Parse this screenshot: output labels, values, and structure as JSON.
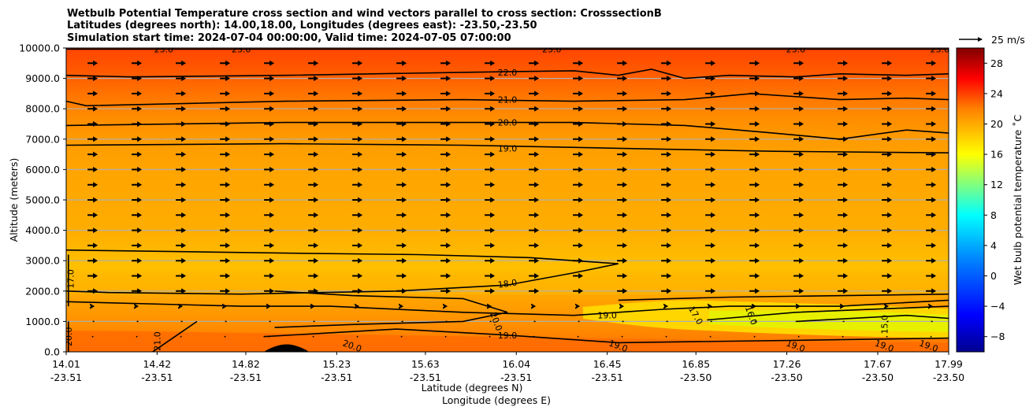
{
  "chart_data": {
    "type": "contour",
    "title_lines": [
      "Wetbulb Potential Temperature cross section and wind vectors parallel to cross section: CrosssectionB",
      "Latitudes (degrees north): 14.00,18.00, Longitudes (degrees east): -23.50,-23.50",
      "Simulation start time: 2024-07-04 00:00:00, Valid time: 2024-07-05 07:00:00"
    ],
    "ylabel": "Altitude (meters)",
    "xlabel": "Latitude (degrees N)",
    "xlabel2": "Longitude (degrees E)",
    "ylim": [
      0,
      10000
    ],
    "xlim": [
      14.01,
      17.99
    ],
    "y_ticks": [
      {
        "value": 0,
        "label": "0.0"
      },
      {
        "value": 1000,
        "label": "1000.0"
      },
      {
        "value": 2000,
        "label": "2000.0"
      },
      {
        "value": 3000,
        "label": "3000.0"
      },
      {
        "value": 4000,
        "label": "4000.0"
      },
      {
        "value": 5000,
        "label": "5000.0"
      },
      {
        "value": 6000,
        "label": "6000.0"
      },
      {
        "value": 7000,
        "label": "7000.0"
      },
      {
        "value": 8000,
        "label": "8000.0"
      },
      {
        "value": 9000,
        "label": "9000.0"
      },
      {
        "value": 10000,
        "label": "10000.0"
      }
    ],
    "x_ticks": [
      {
        "value": 14.01,
        "lat": "14.01",
        "lon": "-23.51"
      },
      {
        "value": 14.42,
        "lat": "14.42",
        "lon": "-23.51"
      },
      {
        "value": 14.82,
        "lat": "14.82",
        "lon": "-23.51"
      },
      {
        "value": 15.23,
        "lat": "15.23",
        "lon": "-23.51"
      },
      {
        "value": 15.63,
        "lat": "15.63",
        "lon": "-23.51"
      },
      {
        "value": 16.04,
        "lat": "16.04",
        "lon": "-23.51"
      },
      {
        "value": 16.45,
        "lat": "16.45",
        "lon": "-23.51"
      },
      {
        "value": 16.85,
        "lat": "16.85",
        "lon": "-23.50"
      },
      {
        "value": 17.26,
        "lat": "17.26",
        "lon": "-23.50"
      },
      {
        "value": 17.67,
        "lat": "17.67",
        "lon": "-23.50"
      },
      {
        "value": 17.99,
        "lat": "17.99",
        "lon": "-23.50"
      }
    ],
    "colorbar": {
      "label": "Wet bulb potential temperature ˚C",
      "range": [
        -10,
        30
      ],
      "ticks": [
        -8,
        -4,
        0,
        4,
        8,
        12,
        16,
        20,
        24,
        28
      ]
    },
    "quiver_key": {
      "label": "25 m/s",
      "speed": 25
    },
    "contours": [
      {
        "level": "23.0",
        "points": [
          [
            14.01,
            9960
          ],
          [
            17.99,
            9960
          ]
        ],
        "labels": [
          {
            "x": 14.45,
            "y": 9960,
            "rot": 0
          },
          {
            "x": 14.8,
            "y": 9960,
            "rot": 0
          },
          {
            "x": 16.2,
            "y": 9960,
            "rot": 0
          },
          {
            "x": 17.3,
            "y": 9960,
            "rot": 0
          },
          {
            "x": 17.95,
            "y": 9960,
            "rot": 0
          }
        ]
      },
      {
        "level": "22.0",
        "points": [
          [
            14.01,
            9100
          ],
          [
            14.3,
            9050
          ],
          [
            15.0,
            9100
          ],
          [
            15.8,
            9200
          ],
          [
            16.3,
            9250
          ],
          [
            16.5,
            9100
          ],
          [
            16.65,
            9300
          ],
          [
            16.8,
            9000
          ],
          [
            17.0,
            9100
          ],
          [
            17.3,
            9050
          ],
          [
            17.5,
            9150
          ],
          [
            17.8,
            9100
          ],
          [
            17.99,
            9150
          ]
        ],
        "labels": [
          {
            "x": 16.0,
            "y": 9200,
            "rot": 0
          }
        ]
      },
      {
        "level": "21.0",
        "points": [
          [
            14.01,
            8250
          ],
          [
            14.1,
            8100
          ],
          [
            15.0,
            8250
          ],
          [
            15.8,
            8300
          ],
          [
            16.3,
            8250
          ],
          [
            16.8,
            8300
          ],
          [
            17.1,
            8500
          ],
          [
            17.5,
            8300
          ],
          [
            17.8,
            8350
          ],
          [
            17.99,
            8300
          ]
        ],
        "labels": [
          {
            "x": 16.0,
            "y": 8300,
            "rot": 0
          }
        ]
      },
      {
        "level": "20.0",
        "points": [
          [
            14.01,
            7450
          ],
          [
            15.0,
            7550
          ],
          [
            15.8,
            7550
          ],
          [
            16.3,
            7550
          ],
          [
            16.8,
            7450
          ],
          [
            17.2,
            7200
          ],
          [
            17.5,
            7000
          ],
          [
            17.8,
            7300
          ],
          [
            17.99,
            7200
          ]
        ],
        "labels": [
          {
            "x": 16.0,
            "y": 7550,
            "rot": 0
          }
        ]
      },
      {
        "level": "19.0",
        "points": [
          [
            14.01,
            6800
          ],
          [
            15.0,
            6850
          ],
          [
            15.8,
            6800
          ],
          [
            16.5,
            6700
          ],
          [
            17.2,
            6600
          ],
          [
            17.99,
            6550
          ]
        ],
        "labels": [
          {
            "x": 16.0,
            "y": 6700,
            "rot": 0
          }
        ]
      },
      {
        "level": "18.0",
        "points": [
          [
            14.01,
            3350
          ],
          [
            14.5,
            3300
          ],
          [
            15.0,
            3250
          ],
          [
            15.6,
            3200
          ],
          [
            16.1,
            3100
          ],
          [
            16.5,
            2900
          ],
          [
            16.3,
            2600
          ],
          [
            16.0,
            2200
          ],
          [
            15.5,
            2000
          ],
          [
            14.8,
            1900
          ],
          [
            14.2,
            1950
          ],
          [
            14.01,
            2000
          ]
        ],
        "labels": [
          {
            "x": 16.0,
            "y": 2250,
            "rot": -8
          }
        ]
      },
      {
        "level": "17.0",
        "points": [
          [
            14.02,
            1500
          ],
          [
            14.02,
            3200
          ]
        ],
        "labels": [
          {
            "x": 14.03,
            "y": 2400,
            "rot": -90
          }
        ]
      },
      {
        "level": "19.0",
        "points": [
          [
            14.01,
            1650
          ],
          [
            14.8,
            1500
          ],
          [
            15.2,
            1500
          ],
          [
            15.8,
            1300
          ],
          [
            16.3,
            1200
          ],
          [
            16.5,
            1300
          ],
          [
            16.7,
            1400
          ],
          [
            17.0,
            1500
          ],
          [
            17.5,
            1500
          ],
          [
            17.99,
            1700
          ]
        ],
        "labels": [
          {
            "x": 16.45,
            "y": 1200,
            "rot": 0
          }
        ]
      },
      {
        "level": "19.0",
        "points": [
          [
            14.9,
            500
          ],
          [
            15.5,
            750
          ],
          [
            16.0,
            550
          ],
          [
            16.5,
            300
          ],
          [
            17.0,
            350
          ],
          [
            17.5,
            400
          ],
          [
            17.99,
            450
          ]
        ],
        "labels": [
          {
            "x": 16.0,
            "y": 550,
            "rot": 0
          },
          {
            "x": 16.5,
            "y": 200,
            "rot": 20
          },
          {
            "x": 17.3,
            "y": 200,
            "rot": 20
          },
          {
            "x": 17.7,
            "y": 200,
            "rot": 20
          },
          {
            "x": 17.9,
            "y": 200,
            "rot": 20
          }
        ]
      },
      {
        "level": "20.0",
        "points": [
          [
            14.95,
            2000
          ],
          [
            15.3,
            1850
          ],
          [
            15.8,
            1750
          ],
          [
            16.0,
            1300
          ],
          [
            15.8,
            1000
          ],
          [
            15.3,
            900
          ],
          [
            14.95,
            800
          ]
        ],
        "labels": [
          {
            "x": 15.95,
            "y": 1000,
            "rot": 70
          },
          {
            "x": 15.3,
            "y": 200,
            "rot": 20
          }
        ]
      },
      {
        "level": "20.0",
        "points": [
          [
            14.02,
            1000
          ],
          [
            14.02,
            0
          ]
        ],
        "labels": [
          {
            "x": 14.02,
            "y": 500,
            "rot": -90
          }
        ]
      },
      {
        "level": "21.0",
        "points": [
          [
            14.4,
            0
          ],
          [
            14.5,
            500
          ],
          [
            14.6,
            1000
          ]
        ],
        "labels": [
          {
            "x": 14.42,
            "y": 350,
            "rot": -90
          }
        ]
      },
      {
        "level": "17.0",
        "points": [
          [
            16.5,
            1700
          ],
          [
            17.0,
            1800
          ],
          [
            17.99,
            1900
          ]
        ],
        "labels": [
          {
            "x": 16.85,
            "y": 1200,
            "rot": 60
          }
        ]
      },
      {
        "level": "16.0",
        "points": [
          [
            16.9,
            1050
          ],
          [
            17.3,
            1300
          ],
          [
            17.99,
            1500
          ]
        ],
        "labels": [
          {
            "x": 17.1,
            "y": 1200,
            "rot": 70
          }
        ]
      },
      {
        "level": "15.0",
        "points": [
          [
            17.3,
            1000
          ],
          [
            17.8,
            1200
          ],
          [
            17.99,
            1100
          ]
        ],
        "labels": [
          {
            "x": 17.7,
            "y": 900,
            "rot": -90
          }
        ]
      }
    ]
  }
}
